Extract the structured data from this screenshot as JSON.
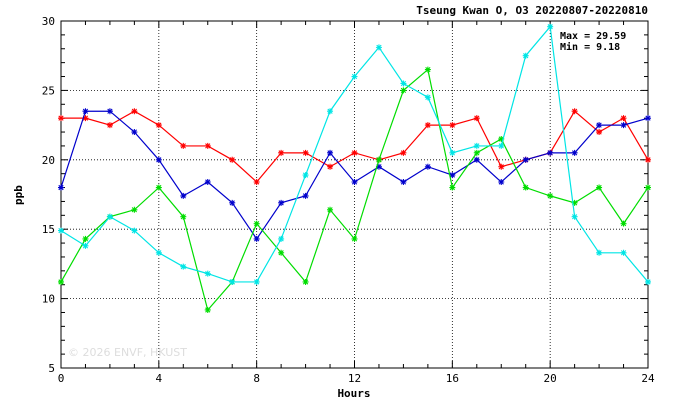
{
  "chart_data": {
    "type": "line",
    "title": "Tseung Kwan O, O3 20220807-20220810",
    "xlabel": "Hours",
    "ylabel": "ppb",
    "xlim": [
      0,
      24
    ],
    "ylim": [
      5,
      30
    ],
    "xticks": [
      0,
      4,
      8,
      12,
      16,
      20,
      24
    ],
    "yticks": [
      5,
      10,
      15,
      20,
      25,
      30
    ],
    "grid": true,
    "stats": {
      "max": "Max = 29.59",
      "min": "Min =  9.18"
    },
    "watermark": "© 2026  ENVF, HKUST",
    "x": [
      0,
      1,
      2,
      3,
      4,
      5,
      6,
      7,
      8,
      9,
      10,
      11,
      12,
      13,
      14,
      15,
      16,
      17,
      18,
      19,
      20,
      21,
      22,
      23,
      24
    ],
    "series": [
      {
        "color": "#ff0000",
        "values": [
          23.0,
          23.0,
          22.5,
          23.5,
          22.5,
          21.0,
          21.0,
          20.0,
          18.4,
          20.5,
          20.5,
          19.5,
          20.5,
          20.0,
          20.5,
          22.5,
          22.5,
          23.0,
          19.5,
          20.0,
          20.5,
          23.5,
          22.0,
          23.0,
          20.0
        ]
      },
      {
        "color": "#0000cc",
        "values": [
          18.0,
          23.5,
          23.5,
          22.0,
          20.0,
          17.4,
          18.4,
          16.9,
          14.3,
          16.9,
          17.4,
          20.5,
          18.4,
          19.5,
          18.4,
          19.5,
          18.9,
          20.0,
          18.4,
          20.0,
          20.5,
          20.5,
          22.5,
          22.5,
          23.0
        ]
      },
      {
        "color": "#00dd00",
        "values": [
          11.2,
          14.3,
          15.9,
          16.4,
          18.0,
          15.9,
          9.18,
          11.2,
          15.4,
          13.3,
          11.2,
          16.4,
          14.3,
          20.0,
          25.0,
          26.5,
          18.0,
          20.5,
          21.5,
          18.0,
          17.4,
          16.9,
          18.0,
          15.4,
          18.0
        ]
      },
      {
        "color": "#00e5e5",
        "values": [
          14.9,
          13.8,
          15.9,
          14.9,
          13.3,
          12.3,
          11.8,
          11.2,
          11.2,
          14.3,
          18.9,
          23.5,
          26.0,
          28.1,
          25.5,
          24.5,
          20.5,
          21.0,
          21.0,
          27.5,
          29.59,
          15.9,
          13.3,
          13.3,
          11.2
        ]
      }
    ]
  }
}
